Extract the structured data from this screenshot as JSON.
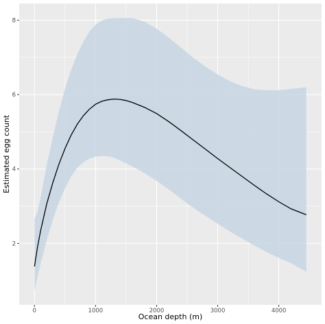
{
  "chart_data": {
    "type": "line",
    "title": "",
    "xlabel": "Ocean depth (m)",
    "ylabel": "Estimated egg count",
    "xlim": [
      -250,
      4700
    ],
    "ylim": [
      0.35,
      8.45
    ],
    "x_ticks": [
      0,
      1000,
      2000,
      3000,
      4000
    ],
    "y_ticks": [
      2,
      4,
      6,
      8
    ],
    "grid": true,
    "legend": "none",
    "series": [
      {
        "kind": "fit",
        "x": [
          0,
          50,
          100,
          200,
          300,
          400,
          500,
          600,
          700,
          800,
          900,
          1000,
          1100,
          1200,
          1300,
          1400,
          1500,
          1600,
          1800,
          2000,
          2200,
          2400,
          2600,
          2800,
          3000,
          3200,
          3400,
          3600,
          3800,
          4000,
          4200,
          4450
        ],
        "y": [
          1.38,
          1.9,
          2.34,
          3.06,
          3.63,
          4.13,
          4.55,
          4.91,
          5.2,
          5.43,
          5.61,
          5.74,
          5.82,
          5.86,
          5.88,
          5.87,
          5.84,
          5.79,
          5.66,
          5.49,
          5.27,
          5.03,
          4.78,
          4.53,
          4.28,
          4.04,
          3.8,
          3.56,
          3.33,
          3.12,
          2.93,
          2.77
        ]
      },
      {
        "kind": "confidence-band",
        "x": [
          0,
          50,
          100,
          200,
          300,
          400,
          500,
          600,
          700,
          800,
          900,
          1000,
          1100,
          1200,
          1300,
          1400,
          1600,
          1800,
          2000,
          2200,
          2400,
          2600,
          2800,
          3000,
          3200,
          3400,
          3600,
          3800,
          4000,
          4200,
          4450
        ],
        "lower": [
          0.72,
          1.1,
          1.45,
          2.08,
          2.63,
          3.1,
          3.48,
          3.8,
          4.03,
          4.18,
          4.28,
          4.33,
          4.35,
          4.34,
          4.3,
          4.23,
          4.07,
          3.89,
          3.68,
          3.45,
          3.2,
          2.96,
          2.74,
          2.53,
          2.32,
          2.13,
          1.94,
          1.77,
          1.61,
          1.47,
          1.24
        ],
        "upper": [
          2.67,
          2.85,
          3.23,
          4.1,
          4.85,
          5.55,
          6.15,
          6.66,
          7.08,
          7.42,
          7.7,
          7.88,
          7.99,
          8.04,
          8.05,
          8.06,
          8.06,
          7.96,
          7.77,
          7.53,
          7.26,
          6.99,
          6.75,
          6.54,
          6.36,
          6.23,
          6.14,
          6.12,
          6.12,
          6.15,
          6.2
        ]
      }
    ],
    "colors": {
      "panel": "#ebebeb",
      "grid_major": "#ffffff",
      "band": "#c7d6e3",
      "line": "#000000",
      "tick_text": "#4d4d4d",
      "axis_text": "#000000"
    }
  }
}
